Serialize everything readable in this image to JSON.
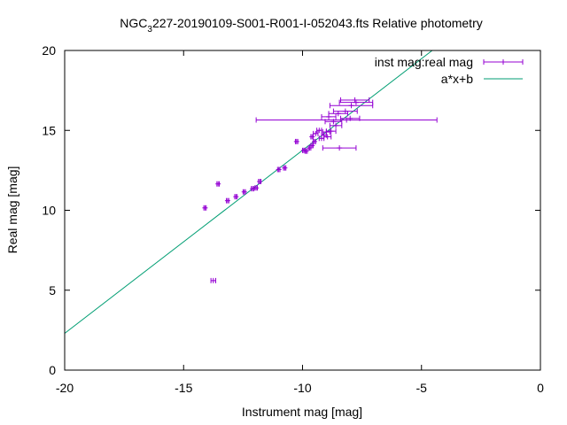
{
  "chart_data": {
    "type": "scatter",
    "title": "NGC_3227-20190109-S001-R001-I-052043.fts Relative photometry",
    "title_parts": {
      "pre": "NGC",
      "sub": "3",
      "post": "227-20190109-S001-R001-I-052043.fts Relative photometry"
    },
    "xlabel": "Instrument mag [mag]",
    "ylabel": "Real mag [mag]",
    "xlim": [
      -20,
      0
    ],
    "ylim": [
      0,
      20
    ],
    "xticks": [
      -20,
      -15,
      -10,
      -5,
      0
    ],
    "yticks": [
      0,
      5,
      10,
      15,
      20
    ],
    "grid": false,
    "legend_position": "top-right",
    "colors": {
      "points": "#9400d3",
      "fit": "#009e73",
      "axes": "#000000"
    },
    "series": [
      {
        "name": "inst mag:real mag",
        "kind": "points-xerror",
        "points": [
          {
            "x": -13.75,
            "y": 5.6,
            "xerr": 0.1
          },
          {
            "x": -14.1,
            "y": 10.15,
            "xerr": 0.05
          },
          {
            "x": -13.55,
            "y": 11.65,
            "xerr": 0.05
          },
          {
            "x": -13.15,
            "y": 10.6,
            "xerr": 0.05
          },
          {
            "x": -12.8,
            "y": 10.85,
            "xerr": 0.05
          },
          {
            "x": -12.45,
            "y": 11.15,
            "xerr": 0.05
          },
          {
            "x": -12.1,
            "y": 11.35,
            "xerr": 0.05
          },
          {
            "x": -11.95,
            "y": 11.4,
            "xerr": 0.05
          },
          {
            "x": -11.8,
            "y": 11.8,
            "xerr": 0.05
          },
          {
            "x": -11.0,
            "y": 12.55,
            "xerr": 0.05
          },
          {
            "x": -10.75,
            "y": 12.65,
            "xerr": 0.05
          },
          {
            "x": -10.25,
            "y": 14.3,
            "xerr": 0.05
          },
          {
            "x": -9.95,
            "y": 13.75,
            "xerr": 0.05
          },
          {
            "x": -9.85,
            "y": 13.7,
            "xerr": 0.05
          },
          {
            "x": -9.7,
            "y": 13.9,
            "xerr": 0.05
          },
          {
            "x": -9.6,
            "y": 14.05,
            "xerr": 0.05
          },
          {
            "x": -9.5,
            "y": 14.3,
            "xerr": 0.05
          },
          {
            "x": -9.6,
            "y": 14.6,
            "xerr": 0.05
          },
          {
            "x": -9.45,
            "y": 14.8,
            "xerr": 0.1
          },
          {
            "x": -9.2,
            "y": 14.5,
            "xerr": 0.1
          },
          {
            "x": -9.1,
            "y": 14.7,
            "xerr": 0.1
          },
          {
            "x": -9.0,
            "y": 14.9,
            "xerr": 0.15
          },
          {
            "x": -9.3,
            "y": 15.0,
            "xerr": 0.1
          },
          {
            "x": -8.95,
            "y": 14.6,
            "xerr": 0.15
          },
          {
            "x": -8.8,
            "y": 14.95,
            "xerr": 0.2
          },
          {
            "x": -8.6,
            "y": 15.3,
            "xerr": 0.25
          },
          {
            "x": -8.45,
            "y": 13.9,
            "xerr": 0.7
          },
          {
            "x": -8.7,
            "y": 15.55,
            "xerr": 0.35
          },
          {
            "x": -8.9,
            "y": 15.85,
            "xerr": 0.3
          },
          {
            "x": -8.5,
            "y": 16.05,
            "xerr": 0.4
          },
          {
            "x": -8.2,
            "y": 16.2,
            "xerr": 0.5
          },
          {
            "x": -8.15,
            "y": 15.65,
            "xerr": 3.8
          },
          {
            "x": -8.0,
            "y": 15.75,
            "xerr": 0.4
          },
          {
            "x": -7.95,
            "y": 16.55,
            "xerr": 0.9
          },
          {
            "x": -7.8,
            "y": 16.9,
            "xerr": 0.6
          },
          {
            "x": -7.75,
            "y": 16.75,
            "xerr": 0.7
          }
        ]
      },
      {
        "name": "a*x+b",
        "kind": "line",
        "x": [
          -20,
          -4.55
        ],
        "y": [
          2.3,
          20
        ]
      }
    ]
  }
}
